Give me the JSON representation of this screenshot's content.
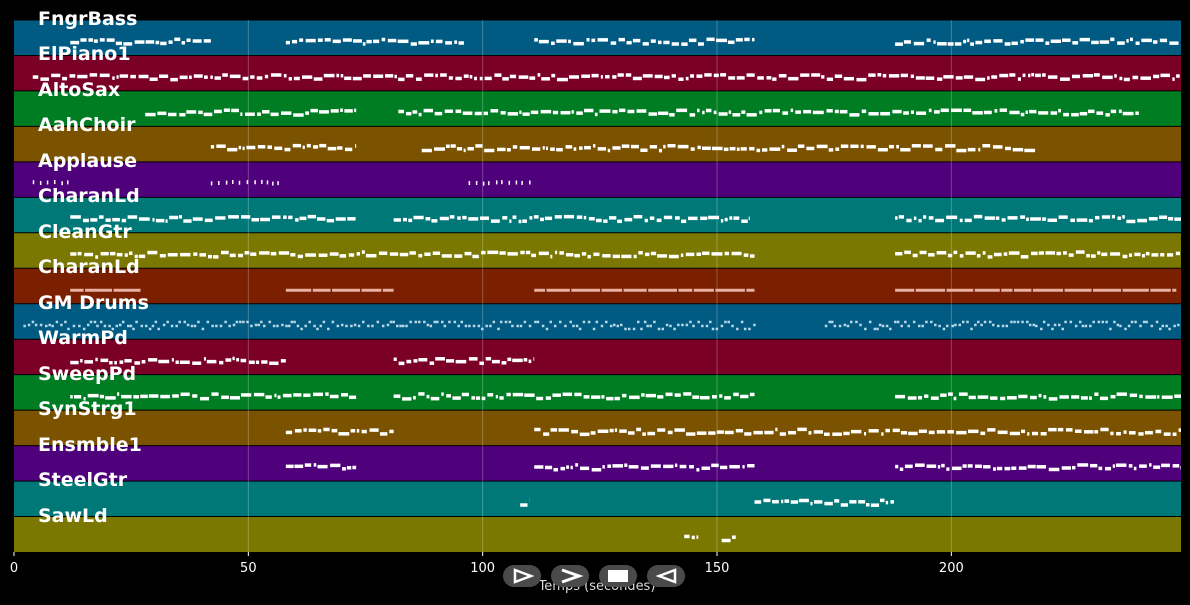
{
  "x_axis": {
    "label": "Temps (secondes)",
    "ticks": [
      "0",
      "50",
      "100",
      "150",
      "200"
    ],
    "tick_values": [
      0,
      50,
      100,
      150,
      200
    ],
    "range": [
      0,
      249
    ]
  },
  "tracks": [
    {
      "name": "FngrBass",
      "color": "#015a82",
      "note_color": "#ffffff",
      "style": "notes",
      "segments": [
        [
          12,
          42
        ],
        [
          58,
          96
        ],
        [
          111,
          158
        ],
        [
          188,
          249
        ]
      ]
    },
    {
      "name": "ElPiano1",
      "color": "#7a0027",
      "note_color": "#ffffff",
      "style": "notes",
      "segments": [
        [
          4,
          249
        ]
      ]
    },
    {
      "name": "AltoSax",
      "color": "#007d22",
      "note_color": "#ffffff",
      "style": "notes",
      "segments": [
        [
          28,
          73
        ],
        [
          82,
          240
        ]
      ]
    },
    {
      "name": "AahChoir",
      "color": "#7a5200",
      "note_color": "#ffffff",
      "style": "notes",
      "segments": [
        [
          42,
          73
        ],
        [
          87,
          218
        ]
      ]
    },
    {
      "name": "Applause",
      "color": "#4f007b",
      "note_color": "#ffffff",
      "style": "sparse",
      "segments": [
        [
          4,
          12
        ],
        [
          42,
          57
        ],
        [
          97,
          111
        ]
      ]
    },
    {
      "name": "CharanLd",
      "color": "#007878",
      "note_color": "#ffffff",
      "style": "notes",
      "segments": [
        [
          12,
          73
        ],
        [
          81,
          157
        ],
        [
          188,
          249
        ]
      ]
    },
    {
      "name": "CleanGtr",
      "color": "#7a7800",
      "note_color": "#ffffff",
      "style": "notes",
      "segments": [
        [
          12,
          158
        ],
        [
          188,
          249
        ]
      ]
    },
    {
      "name": "CharanLd",
      "color": "#7a2000",
      "note_color": "#e8b0a0",
      "style": "long",
      "segments": [
        [
          12,
          27
        ],
        [
          58,
          81
        ],
        [
          111,
          158
        ],
        [
          188,
          248
        ]
      ]
    },
    {
      "name": "GM Drums",
      "color": "#015a82",
      "note_color": "#b8d8e8",
      "style": "drums",
      "segments": [
        [
          2,
          158
        ],
        [
          173,
          249
        ]
      ]
    },
    {
      "name": "WarmPd",
      "color": "#7a0027",
      "note_color": "#ffffff",
      "style": "notes",
      "segments": [
        [
          12,
          58
        ],
        [
          81,
          111
        ]
      ]
    },
    {
      "name": "SweepPd",
      "color": "#007d22",
      "note_color": "#ffffff",
      "style": "notes",
      "segments": [
        [
          12,
          73
        ],
        [
          81,
          158
        ],
        [
          188,
          249
        ]
      ]
    },
    {
      "name": "SynStrg1",
      "color": "#7a5200",
      "note_color": "#ffffff",
      "style": "notes",
      "segments": [
        [
          58,
          81
        ],
        [
          111,
          249
        ]
      ]
    },
    {
      "name": "Ensmble1",
      "color": "#4f007b",
      "note_color": "#ffffff",
      "style": "notes",
      "segments": [
        [
          58,
          73
        ],
        [
          111,
          158
        ],
        [
          188,
          249
        ]
      ]
    },
    {
      "name": "SteelGtr",
      "color": "#007878",
      "note_color": "#ffffff",
      "style": "notes",
      "segments": [
        [
          108,
          110
        ],
        [
          158,
          188
        ]
      ]
    },
    {
      "name": "SawLd",
      "color": "#7a7800",
      "note_color": "#ffffff",
      "style": "notes",
      "segments": [
        [
          143,
          146
        ],
        [
          151,
          154
        ]
      ]
    }
  ],
  "transport": [
    {
      "name": "play-icon",
      "label": "play"
    },
    {
      "name": "forward-icon",
      "label": "forward"
    },
    {
      "name": "stop-icon",
      "label": "stop"
    },
    {
      "name": "rewind-icon",
      "label": "back"
    }
  ]
}
